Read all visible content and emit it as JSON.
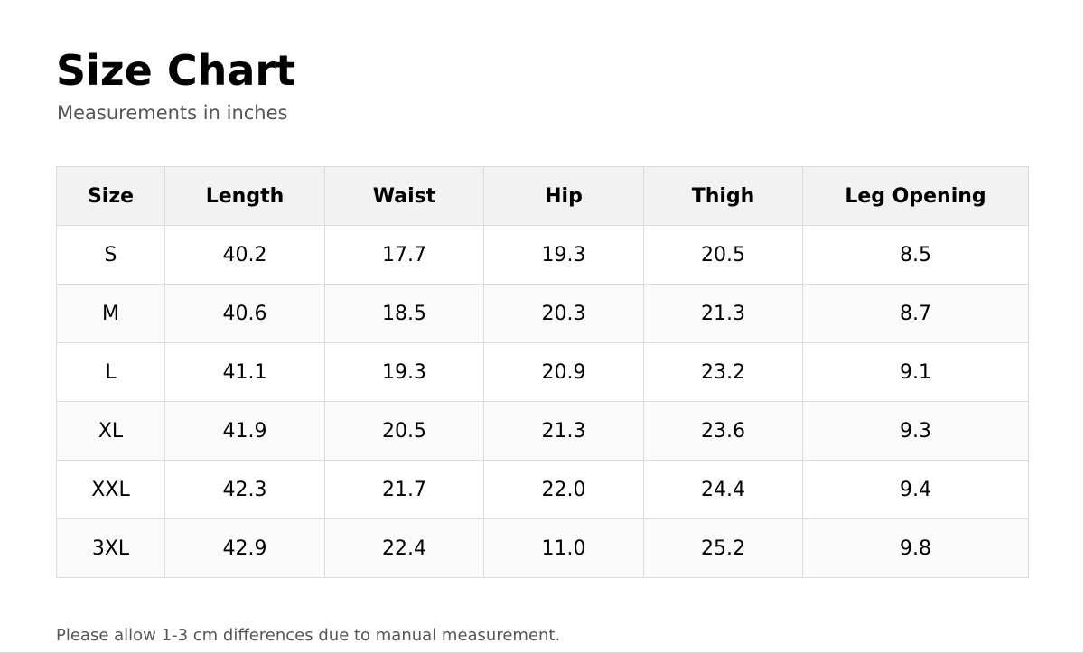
{
  "page": {
    "title": "Size Chart",
    "subtitle": "Measurements in inches",
    "footnote": "Please allow 1-3 cm differences due to manual measurement."
  },
  "table": {
    "headers": [
      "Size",
      "Length",
      "Waist",
      "Hip",
      "Thigh",
      "Leg Opening"
    ],
    "rows": [
      [
        "S",
        "40.2",
        "17.7",
        "19.3",
        "20.5",
        "8.5"
      ],
      [
        "M",
        "40.6",
        "18.5",
        "20.3",
        "21.3",
        "8.7"
      ],
      [
        "L",
        "41.1",
        "19.3",
        "20.9",
        "23.2",
        "9.1"
      ],
      [
        "XL",
        "41.9",
        "20.5",
        "21.3",
        "23.6",
        "9.3"
      ],
      [
        "XXL",
        "42.3",
        "21.7",
        "22.0",
        "24.4",
        "9.4"
      ],
      [
        "3XL",
        "42.9",
        "22.4",
        "11.0",
        "25.2",
        "9.8"
      ]
    ]
  },
  "colors": {
    "header_background": "#f2f2f2",
    "grid_line": "#dcdcdc",
    "muted_text": "#555555"
  }
}
